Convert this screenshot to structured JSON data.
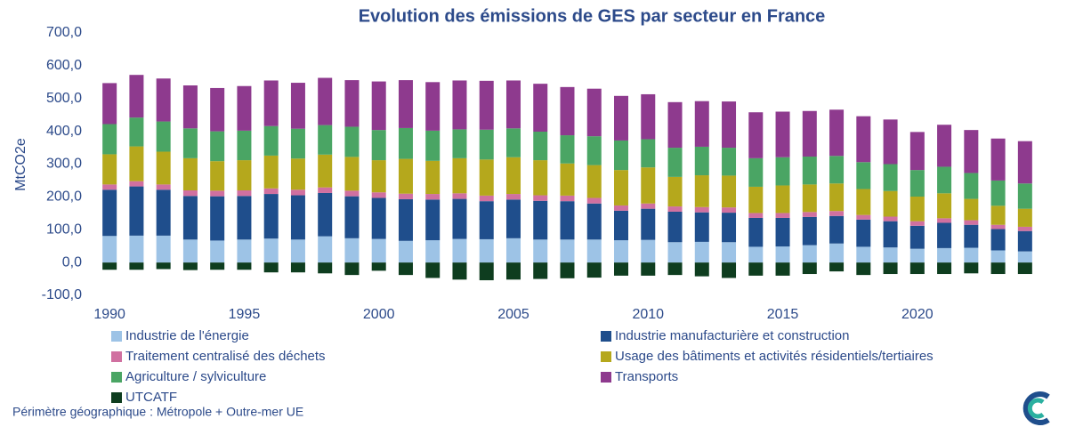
{
  "chart_data": {
    "type": "stacked-bar",
    "title": "Evolution des émissions de GES par secteur en France",
    "y_label": "MtCO2e",
    "footnote": "Périmètre géographique : Métropole + Outre-mer UE",
    "x": [
      1990,
      1991,
      1992,
      1993,
      1994,
      1995,
      1996,
      1997,
      1998,
      1999,
      2000,
      2001,
      2002,
      2003,
      2004,
      2005,
      2006,
      2007,
      2008,
      2009,
      2010,
      2011,
      2012,
      2013,
      2014,
      2015,
      2016,
      2017,
      2018,
      2019,
      2020,
      2021,
      2022,
      2023,
      2024
    ],
    "xlim": [
      1989.4,
      2024.6
    ],
    "xticks": [
      1990,
      1995,
      2000,
      2005,
      2010,
      2015,
      2020
    ],
    "ylim": [
      -100,
      700
    ],
    "yticks": [
      {
        "value": -100,
        "label": "-100,0"
      },
      {
        "value": 0,
        "label": "0,0"
      },
      {
        "value": 100,
        "label": "100,0"
      },
      {
        "value": 200,
        "label": "200,0"
      },
      {
        "value": 300,
        "label": "300,0"
      },
      {
        "value": 400,
        "label": "400,0"
      },
      {
        "value": 500,
        "label": "500,0"
      },
      {
        "value": 600,
        "label": "600,0"
      },
      {
        "value": 700,
        "label": "700,0"
      }
    ],
    "grid": false,
    "series": [
      {
        "name": "Industrie de l'énergie",
        "color": "#9dc3e6",
        "values": [
          81,
          82,
          82,
          70,
          67,
          70,
          73,
          70,
          80,
          74,
          72,
          66,
          68,
          72,
          71,
          74,
          70,
          70,
          70,
          68,
          69,
          62,
          63,
          62,
          48,
          49,
          53,
          58,
          48,
          46,
          42,
          44,
          45,
          37,
          34
        ]
      },
      {
        "name": "Industrie manufacturière et construction",
        "color": "#1f4e8c",
        "values": [
          141,
          150,
          140,
          133,
          135,
          133,
          136,
          135,
          132,
          128,
          125,
          127,
          124,
          122,
          116,
          118,
          118,
          117,
          110,
          90,
          95,
          93,
          90,
          90,
          88,
          87,
          86,
          84,
          83,
          80,
          70,
          77,
          70,
          65,
          62
        ]
      },
      {
        "name": "Traitement centralisé des déchets",
        "color": "#d070a0",
        "values": [
          16,
          16,
          16,
          17,
          17,
          17,
          17,
          17,
          17,
          17,
          17,
          17,
          17,
          17,
          17,
          17,
          17,
          17,
          17,
          16,
          16,
          16,
          16,
          16,
          15,
          15,
          15,
          15,
          14,
          14,
          14,
          14,
          14,
          13,
          13
        ]
      },
      {
        "name": "Usage des bâtiments et activités résidentiels/tertiaires",
        "color": "#b5a81c",
        "values": [
          92,
          106,
          100,
          98,
          90,
          92,
          100,
          95,
          100,
          103,
          98,
          106,
          101,
          107,
          110,
          112,
          107,
          98,
          100,
          108,
          110,
          90,
          97,
          97,
          80,
          84,
          84,
          84,
          79,
          78,
          75,
          76,
          65,
          58,
          55
        ]
      },
      {
        "name": "Agriculture / sylviculture",
        "color": "#4aa564",
        "values": [
          92,
          88,
          92,
          91,
          91,
          90,
          90,
          91,
          90,
          92,
          92,
          94,
          92,
          88,
          91,
          88,
          87,
          86,
          88,
          90,
          86,
          89,
          87,
          85,
          87,
          86,
          85,
          84,
          82,
          82,
          81,
          81,
          79,
          77,
          77
        ]
      },
      {
        "name": "Transports",
        "color": "#8e3a8e",
        "values": [
          125,
          130,
          131,
          131,
          132,
          136,
          139,
          140,
          144,
          142,
          148,
          146,
          148,
          149,
          149,
          146,
          146,
          147,
          145,
          136,
          137,
          139,
          139,
          141,
          140,
          139,
          139,
          141,
          140,
          136,
          116,
          128,
          131,
          128,
          129
        ]
      },
      {
        "name": "UTCATF",
        "color": "#0e3d1f",
        "values": [
          -22,
          -22,
          -20,
          -23,
          -22,
          -22,
          -30,
          -30,
          -33,
          -38,
          -25,
          -38,
          -47,
          -52,
          -54,
          -52,
          -50,
          -48,
          -46,
          -40,
          -40,
          -38,
          -42,
          -47,
          -40,
          -40,
          -35,
          -27,
          -38,
          -35,
          -35,
          -35,
          -33,
          -35,
          -35
        ]
      }
    ]
  }
}
